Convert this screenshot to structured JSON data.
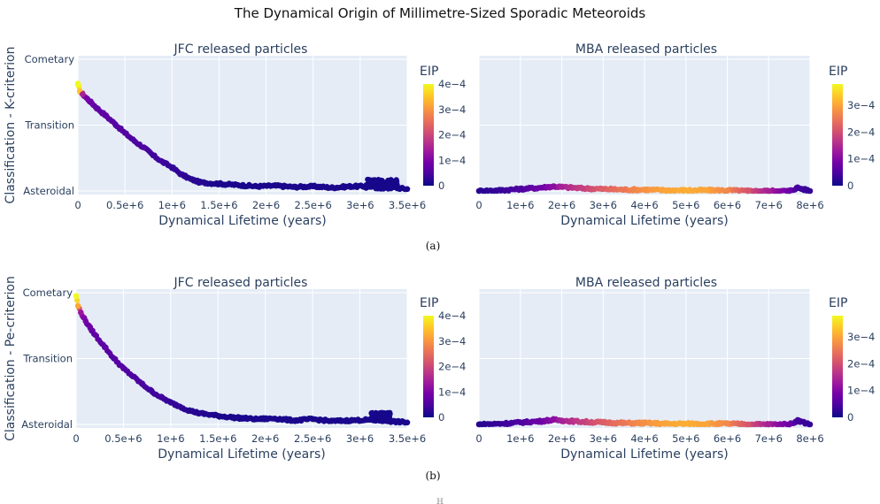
{
  "figure": {
    "title": "The Dynamical Origin of Millimetre-Sized Sporadic Meteoroids",
    "caption_a": "(a)",
    "caption_b": "(b)",
    "caption_note": "ℍ"
  },
  "colorscale": [
    "#0d0887",
    "#46039f",
    "#7201a8",
    "#9c179e",
    "#bd3786",
    "#d8576b",
    "#ed7953",
    "#fb9f3a",
    "#fdca26",
    "#f0f921"
  ],
  "panel_colors": {
    "plot_bg": "#e5ecf6",
    "grid": "#ffffff",
    "text": "#2a3f5f"
  },
  "chart_data": [
    {
      "type": "scatter",
      "title": "JFC released particles",
      "xlabel": "Dynamical Lifetime (years)",
      "ylabel": "Classification - K-criterion",
      "xlim": [
        0,
        3500000
      ],
      "x_ticks": [
        0,
        500000,
        1000000,
        1500000,
        2000000,
        2500000,
        3000000,
        3500000
      ],
      "x_tick_labels": [
        "0",
        "0.5e+6",
        "1e+6",
        "1.5e+6",
        "2e+6",
        "2.5e+6",
        "3e+6",
        "3.5e+6"
      ],
      "y_categories": [
        "Asteroidal",
        "Transition",
        "Cometary"
      ],
      "colorbar": {
        "title": "EIP",
        "max": 0.0004,
        "tick_values": [
          0,
          0.0001,
          0.0002,
          0.0003,
          0.0004
        ],
        "tick_labels": [
          "0",
          "1e−4",
          "2e−4",
          "3e−4",
          "4e−4"
        ]
      },
      "x": [
        0,
        20000,
        50000,
        100000,
        150000,
        200000,
        300000,
        400000,
        500000,
        600000,
        700000,
        800000,
        900000,
        1000000,
        1100000,
        1200000,
        1300000,
        1500000,
        1700000,
        1900000,
        2100000,
        2300000,
        2500000,
        2700000,
        2900000,
        3100000,
        3300000,
        3500000
      ],
      "y": [
        1.62,
        1.52,
        1.47,
        1.4,
        1.33,
        1.26,
        1.14,
        1.01,
        0.88,
        0.76,
        0.66,
        0.54,
        0.44,
        0.36,
        0.25,
        0.18,
        0.13,
        0.11,
        0.09,
        0.07,
        0.08,
        0.06,
        0.07,
        0.05,
        0.07,
        0.07,
        0.06,
        0.03
      ],
      "eip": [
        0.00042,
        0.00035,
        0.00015,
        9e-05,
        8e-05,
        7e-05,
        7e-05,
        6e-05,
        6e-05,
        5e-05,
        5e-05,
        4e-05,
        4e-05,
        3e-05,
        3e-05,
        2e-05,
        2e-05,
        1e-05,
        1e-05,
        1e-05,
        1e-05,
        1e-05,
        1e-05,
        1e-05,
        1e-05,
        1e-05,
        1e-05,
        1e-05
      ],
      "clusters": [
        {
          "x0": 3050000,
          "x1": 3400000,
          "y0": 0.03,
          "y1": 0.18
        }
      ]
    },
    {
      "type": "scatter",
      "title": "MBA released particles",
      "xlabel": "Dynamical Lifetime (years)",
      "ylabel": "",
      "xlim": [
        0,
        8000000
      ],
      "x_ticks": [
        0,
        1000000,
        2000000,
        3000000,
        4000000,
        5000000,
        6000000,
        7000000,
        8000000
      ],
      "x_tick_labels": [
        "0",
        "1e+6",
        "2e+6",
        "3e+6",
        "4e+6",
        "5e+6",
        "6e+6",
        "7e+6",
        "8e+6"
      ],
      "y_categories": [
        "Asteroidal",
        "Transition",
        "Cometary"
      ],
      "colorbar": {
        "title": "EIP",
        "max": 0.00038,
        "tick_values": [
          0,
          0.0001,
          0.0002,
          0.0003
        ],
        "tick_labels": [
          "0",
          "1e−4",
          "2e−4",
          "3e−4"
        ]
      },
      "x": [
        0,
        500000,
        1000000,
        1500000,
        1800000,
        2000000,
        2500000,
        3000000,
        3500000,
        4000000,
        4500000,
        5000000,
        5500000,
        6000000,
        6500000,
        7000000,
        7500000,
        7700000,
        8000000
      ],
      "y": [
        0.0,
        0.01,
        0.03,
        0.05,
        0.07,
        0.06,
        0.04,
        0.03,
        0.02,
        0.02,
        0.01,
        0.01,
        0.01,
        0.01,
        0.0,
        0.0,
        0.0,
        0.05,
        0.0
      ],
      "eip": [
        2e-05,
        3e-05,
        5e-05,
        8e-05,
        0.00011,
        0.00014,
        0.00018,
        0.00022,
        0.00025,
        0.00028,
        0.0003,
        0.00031,
        0.0003,
        0.00027,
        0.00021,
        0.00014,
        8e-05,
        4e-05,
        3e-05
      ]
    },
    {
      "type": "scatter",
      "title": "JFC released particles",
      "xlabel": "Dynamical Lifetime (years)",
      "ylabel": "Classification - Pe-criterion",
      "xlim": [
        0,
        3500000
      ],
      "x_ticks": [
        0,
        500000,
        1000000,
        1500000,
        2000000,
        2500000,
        3000000,
        3500000
      ],
      "x_tick_labels": [
        "0",
        "0.5e+6",
        "1e+6",
        "1.5e+6",
        "2e+6",
        "2.5e+6",
        "3e+6",
        "3.5e+6"
      ],
      "y_categories": [
        "Asteroidal",
        "Transition",
        "Cometary"
      ],
      "colorbar": {
        "title": "EIP",
        "max": 0.0004,
        "tick_values": [
          0,
          0.0001,
          0.0002,
          0.0003,
          0.0004
        ],
        "tick_labels": [
          "0",
          "1e−4",
          "2e−4",
          "3e−4",
          "4e−4"
        ]
      },
      "x": [
        0,
        20000,
        50000,
        100000,
        150000,
        200000,
        300000,
        400000,
        500000,
        600000,
        700000,
        800000,
        900000,
        1000000,
        1100000,
        1200000,
        1300000,
        1500000,
        1700000,
        1900000,
        2100000,
        2300000,
        2500000,
        2700000,
        2900000,
        3100000,
        3300000,
        3500000
      ],
      "y": [
        1.95,
        1.8,
        1.7,
        1.57,
        1.46,
        1.36,
        1.18,
        1.0,
        0.85,
        0.73,
        0.61,
        0.5,
        0.41,
        0.33,
        0.27,
        0.21,
        0.17,
        0.13,
        0.1,
        0.08,
        0.09,
        0.06,
        0.08,
        0.05,
        0.06,
        0.07,
        0.05,
        0.03
      ],
      "eip": [
        0.00042,
        0.00032,
        0.00013,
        9e-05,
        8e-05,
        7e-05,
        7e-05,
        6e-05,
        6e-05,
        5e-05,
        5e-05,
        4e-05,
        4e-05,
        3e-05,
        3e-05,
        2e-05,
        2e-05,
        1e-05,
        1e-05,
        1e-05,
        1e-05,
        1e-05,
        1e-05,
        1e-05,
        1e-05,
        1e-05,
        1e-05,
        1e-05
      ],
      "clusters": [
        {
          "x0": 3120000,
          "x1": 3320000,
          "y0": 0.05,
          "y1": 0.18
        }
      ]
    },
    {
      "type": "scatter",
      "title": "MBA released particles",
      "xlabel": "Dynamical Lifetime (years)",
      "ylabel": "",
      "xlim": [
        0,
        8000000
      ],
      "x_ticks": [
        0,
        1000000,
        2000000,
        3000000,
        4000000,
        5000000,
        6000000,
        7000000,
        8000000
      ],
      "x_tick_labels": [
        "0",
        "1e+6",
        "2e+6",
        "3e+6",
        "4e+6",
        "5e+6",
        "6e+6",
        "7e+6",
        "8e+6"
      ],
      "y_categories": [
        "Asteroidal",
        "Transition",
        "Cometary"
      ],
      "colorbar": {
        "title": "EIP",
        "max": 0.00038,
        "tick_values": [
          0,
          0.0001,
          0.0002,
          0.0003
        ],
        "tick_labels": [
          "0",
          "1e−4",
          "2e−4",
          "3e−4"
        ]
      },
      "x": [
        0,
        500000,
        1000000,
        1500000,
        1800000,
        2000000,
        2500000,
        3000000,
        3500000,
        4000000,
        4500000,
        5000000,
        5500000,
        6000000,
        6500000,
        7000000,
        7500000,
        7700000,
        8000000
      ],
      "y": [
        0.0,
        0.01,
        0.03,
        0.05,
        0.07,
        0.06,
        0.04,
        0.03,
        0.02,
        0.02,
        0.01,
        0.01,
        0.01,
        0.01,
        0.0,
        0.0,
        0.0,
        0.06,
        0.0
      ],
      "eip": [
        2e-05,
        3e-05,
        5e-05,
        8e-05,
        0.00011,
        0.00014,
        0.00018,
        0.00022,
        0.00025,
        0.00028,
        0.0003,
        0.00031,
        0.0003,
        0.00027,
        0.00021,
        0.00014,
        8e-05,
        4e-05,
        3e-05
      ]
    }
  ]
}
